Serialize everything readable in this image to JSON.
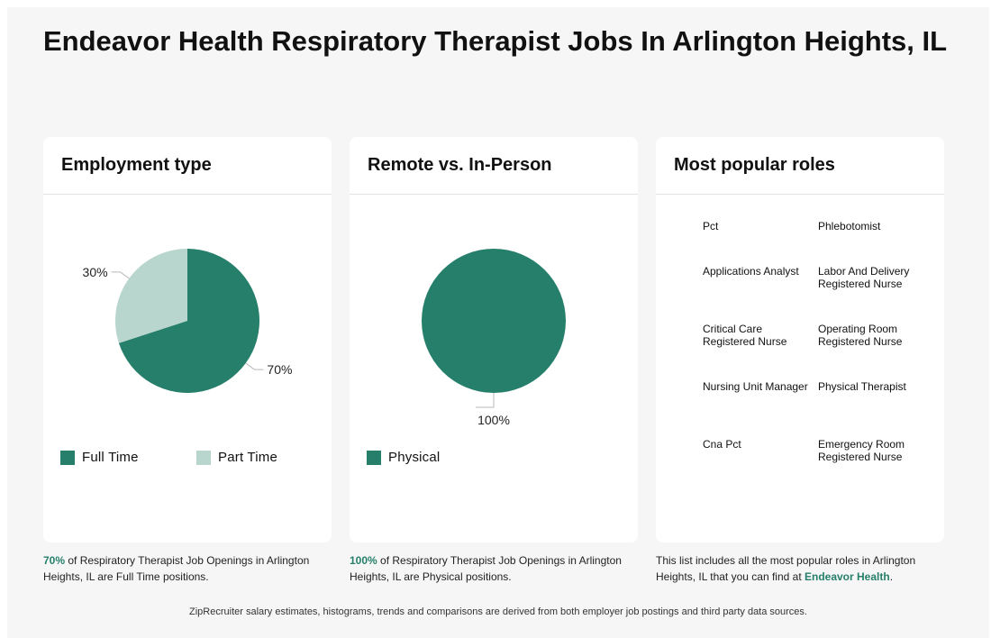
{
  "page": {
    "title": "Endeavor Health Respiratory Therapist Jobs In Arlington Heights, IL",
    "footer_note": "ZipRecruiter salary estimates, histograms, trends and comparisons are derived from both employer job postings and third party data sources."
  },
  "colors": {
    "primary": "#267f6a",
    "secondary": "#b8d6cd",
    "card_background": "#ffffff",
    "page_background": "#f6f6f6"
  },
  "employment": {
    "title": "Employment type",
    "caption": {
      "highlight": "70%",
      "text": " of Respiratory Therapist Job Openings in Arlington Heights, IL are Full Time positions."
    }
  },
  "remote": {
    "title": "Remote vs. In-Person",
    "caption": {
      "highlight": "100%",
      "text": " of Respiratory Therapist Job Openings in Arlington Heights, IL are Physical positions."
    }
  },
  "roles": {
    "title": "Most popular roles",
    "items": [
      "Pct",
      "Phlebotomist",
      "Applications Analyst",
      "Labor And Delivery Registered Nurse",
      "Critical Care Registered Nurse",
      "Operating Room Registered Nurse",
      "Nursing Unit Manager",
      "Physical Therapist",
      "Cna Pct",
      "Emergency Room Registered Nurse"
    ],
    "caption": {
      "text": "This list includes all the most popular roles in Arlington Heights, IL that you can find at ",
      "link": "Endeavor Health",
      "end": "."
    }
  },
  "chart_data": [
    {
      "type": "pie",
      "title": "Employment type",
      "categories": [
        "Full Time",
        "Part Time"
      ],
      "values": [
        70,
        30
      ],
      "labels": [
        "70%",
        "30%"
      ],
      "colors": [
        "#267f6a",
        "#b8d6cd"
      ],
      "legend": "bottom"
    },
    {
      "type": "pie",
      "title": "Remote vs. In-Person",
      "categories": [
        "Physical"
      ],
      "values": [
        100
      ],
      "labels": [
        "100%"
      ],
      "colors": [
        "#267f6a"
      ],
      "legend": "bottom"
    }
  ]
}
